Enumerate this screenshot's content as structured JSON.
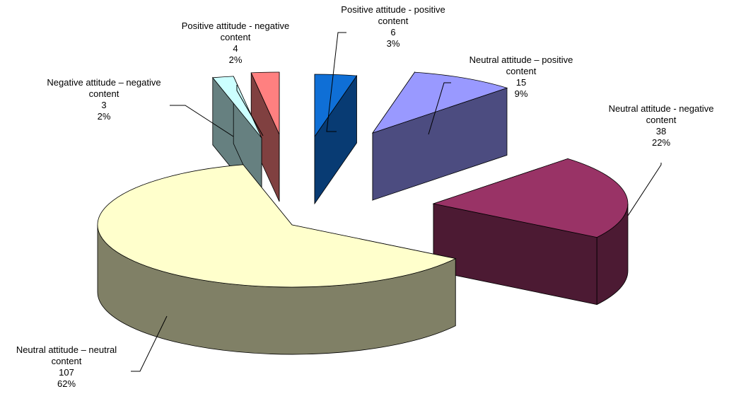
{
  "chart_data": {
    "type": "pie",
    "style": "3d-exploded",
    "legend": "none",
    "slices": [
      {
        "key": "pos_pos",
        "label": [
          "Positive attitude - positive",
          "content"
        ],
        "value": 6,
        "percent": "3%",
        "colors": {
          "top": "#0f6fd6",
          "side": "#083b73"
        }
      },
      {
        "key": "neu_pos",
        "label": [
          "Neutral attitude – positive",
          "content"
        ],
        "value": 15,
        "percent": "9%",
        "colors": {
          "top": "#9999ff",
          "side": "#4c4c80"
        }
      },
      {
        "key": "neu_neg",
        "label": [
          "Neutral attitude - negative",
          "content"
        ],
        "value": 38,
        "percent": "22%",
        "colors": {
          "top": "#993366",
          "side": "#4c1a33"
        }
      },
      {
        "key": "neu_neu",
        "label": [
          "Neutral attitude – neutral",
          "content"
        ],
        "value": 107,
        "percent": "62%",
        "colors": {
          "top": "#ffffcc",
          "side": "#808066"
        }
      },
      {
        "key": "neg_neg",
        "label": [
          "Negative attitude – negative",
          "content"
        ],
        "value": 3,
        "percent": "2%",
        "colors": {
          "top": "#ccffff",
          "side": "#668080"
        }
      },
      {
        "key": "pos_neg",
        "label": [
          "Positive attitude - negative",
          "content"
        ],
        "value": 4,
        "percent": "2%",
        "colors": {
          "top": "#ff8080",
          "side": "#804040"
        }
      }
    ]
  }
}
